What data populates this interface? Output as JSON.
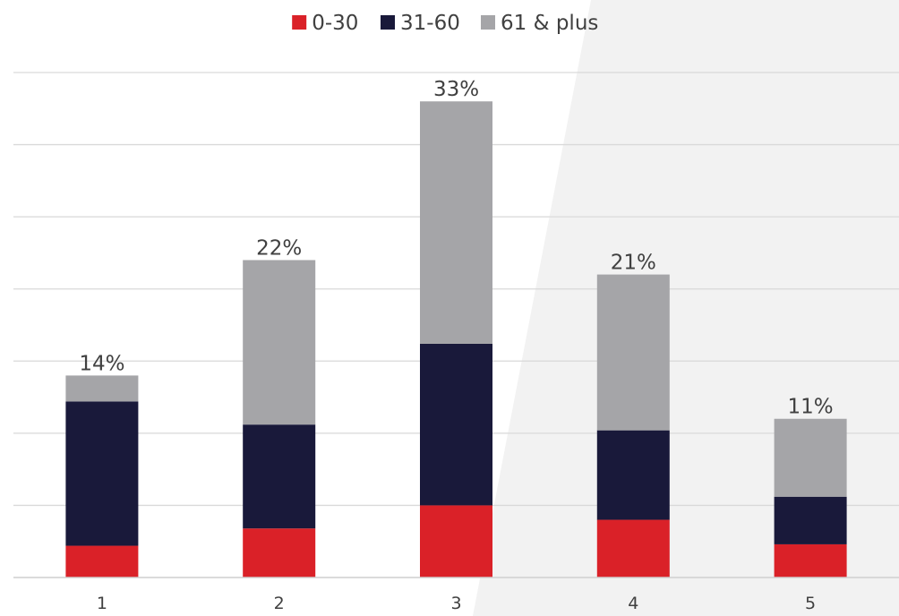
{
  "chart_data": {
    "type": "bar",
    "stacked": true,
    "title": "",
    "xlabel": "",
    "ylabel": "",
    "categories": [
      "1",
      "2",
      "3",
      "4",
      "5"
    ],
    "series": [
      {
        "name": "0-30",
        "color": "#da2128",
        "values": [
          2.2,
          3.4,
          5.0,
          4.0,
          2.3
        ]
      },
      {
        "name": "31-60",
        "color": "#19193a",
        "values": [
          10.0,
          7.2,
          11.2,
          6.2,
          3.3
        ]
      },
      {
        "name": "61 & plus",
        "color": "#a5a5a8",
        "values": [
          1.8,
          11.4,
          16.8,
          10.8,
          5.4
        ]
      }
    ],
    "totals": [
      14,
      22,
      33,
      21,
      11
    ],
    "total_labels": [
      "14%",
      "22%",
      "33%",
      "21%",
      "11%"
    ],
    "ylim": [
      0,
      35
    ],
    "grid": true,
    "legend_position": "top-center",
    "background_accent": "#f2f2f2"
  }
}
